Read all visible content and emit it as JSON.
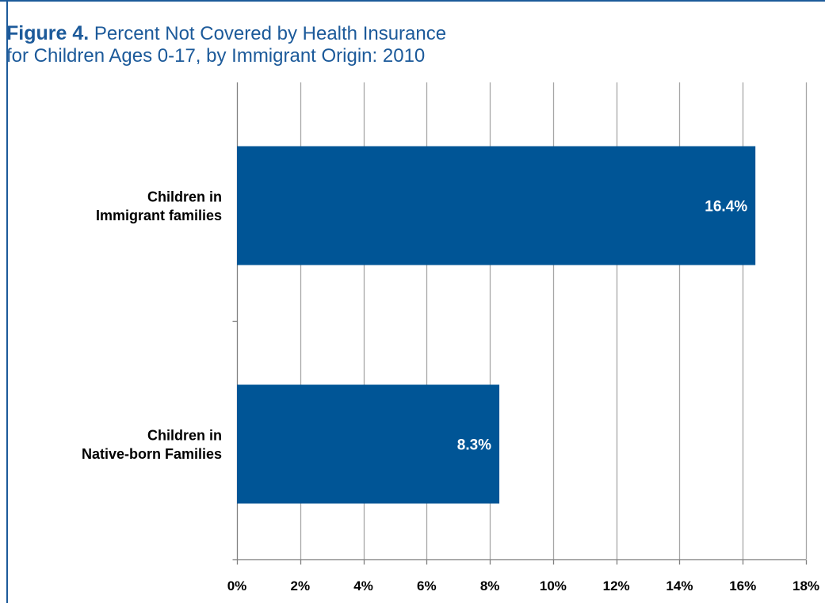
{
  "figure": {
    "number_label": "Figure 4.",
    "title_line1": "Percent Not Covered by Health Insurance",
    "title_line2": "for Children Ages 0-17, by Immigrant Origin: 2010"
  },
  "colors": {
    "accent": "#1c5a9a",
    "bar": "#005596",
    "gridline": "#a6a6a6",
    "axis": "#808080"
  },
  "chart_data": {
    "type": "bar",
    "orientation": "horizontal",
    "title": "Percent Not Covered by Health Insurance for Children Ages 0-17, by Immigrant Origin: 2010",
    "categories": [
      [
        "Children in",
        "Immigrant families"
      ],
      [
        "Children in",
        "Native-born Families"
      ]
    ],
    "values": [
      16.4,
      8.3
    ],
    "data_labels": [
      "16.4%",
      "8.3%"
    ],
    "xlim": [
      0,
      18
    ],
    "x_ticks": [
      0,
      2,
      4,
      6,
      8,
      10,
      12,
      14,
      16,
      18
    ],
    "x_tick_labels": [
      "0%",
      "2%",
      "4%",
      "6%",
      "8%",
      "10%",
      "12%",
      "14%",
      "16%",
      "18%"
    ],
    "xlabel": "",
    "ylabel": "",
    "grid": "vertical",
    "legend": "none"
  }
}
